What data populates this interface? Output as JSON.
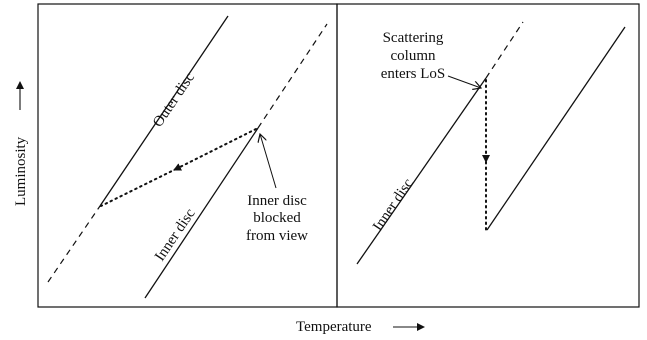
{
  "axes": {
    "x_label": "Temperature",
    "y_label": "Luminosity"
  },
  "left_panel": {
    "outer_disc_label": "Outer disc",
    "inner_disc_label": "Inner disc",
    "annotation_lines": [
      "Inner disc",
      "blocked",
      "from view"
    ]
  },
  "right_panel": {
    "inner_disc_label": "Inner disc",
    "annotation_lines": [
      "Scattering",
      "column",
      "enters LoS"
    ]
  }
}
